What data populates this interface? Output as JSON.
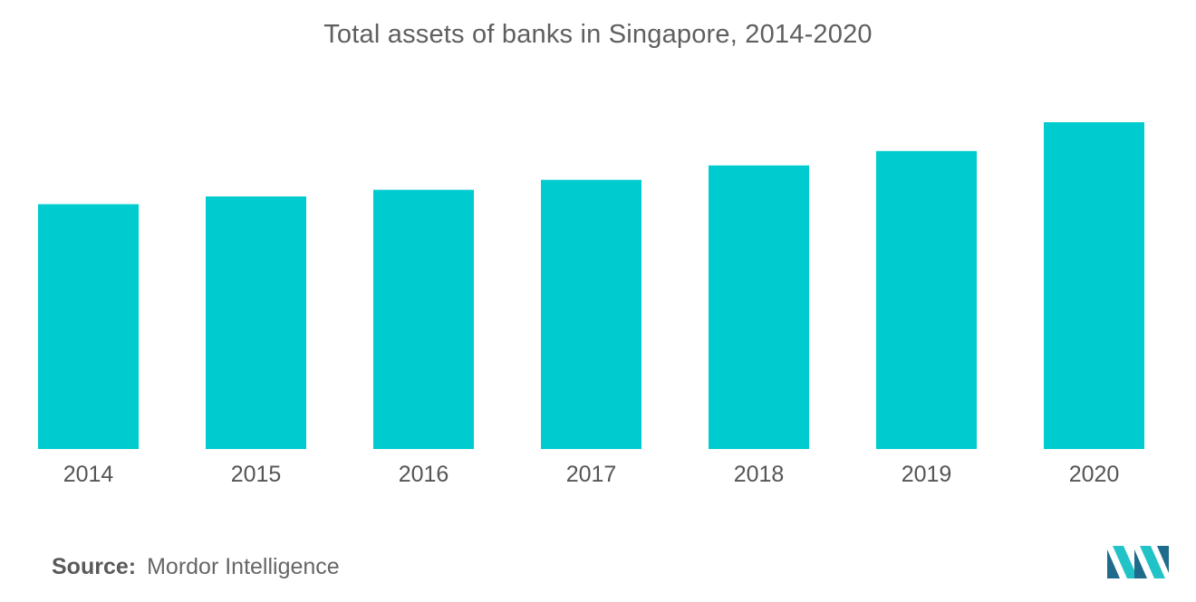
{
  "chart_data": {
    "type": "bar",
    "title": "Total assets of banks in Singapore, 2014-2020",
    "categories": [
      "2014",
      "2015",
      "2016",
      "2017",
      "2018",
      "2019",
      "2020"
    ],
    "values": [
      221,
      228,
      234,
      243,
      256,
      269,
      295
    ],
    "xlabel": "",
    "ylabel": "",
    "ylim": [
      0,
      380
    ],
    "grid": false,
    "legend": "none",
    "bar_color": "#00cccf"
  },
  "source": {
    "label": "Source:",
    "text": "Mordor Intelligence"
  },
  "colors": {
    "bar": "#00cccf",
    "logo_dark": "#1f6b8c",
    "logo_light": "#21c3c6"
  }
}
